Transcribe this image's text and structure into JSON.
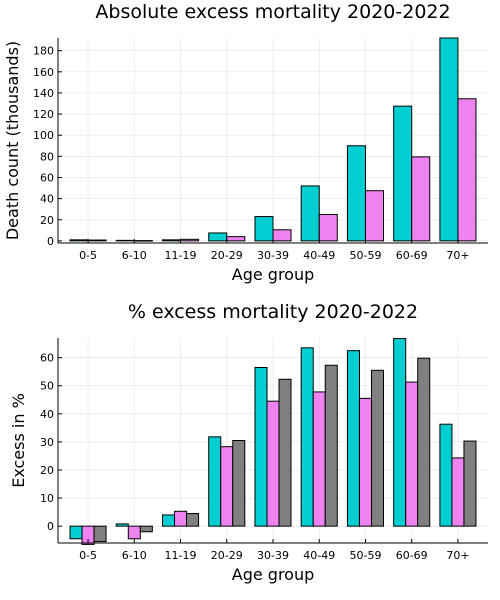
{
  "chart_data": [
    {
      "type": "bar",
      "title": "Absolute excess mortality 2020-2022",
      "xlabel": "Age group",
      "ylabel": "Death count (thousands)",
      "categories": [
        "0-5",
        "6-10",
        "11-19",
        "20-29",
        "30-39",
        "40-49",
        "50-59",
        "60-69",
        "70+"
      ],
      "ylim": [
        -2,
        192
      ],
      "yticks": [
        0,
        20,
        40,
        60,
        80,
        100,
        120,
        140,
        160,
        180
      ],
      "grid": true,
      "colors": [
        "#00CED1",
        "#EE82EE"
      ],
      "series": [
        {
          "values": [
            1.0,
            0.5,
            1.0,
            7.5,
            23.0,
            52.0,
            90.0,
            127.5,
            192.0
          ]
        },
        {
          "values": [
            0.8,
            0.3,
            1.5,
            4.0,
            10.5,
            25.0,
            47.5,
            79.5,
            134.5
          ]
        }
      ]
    },
    {
      "type": "bar",
      "title": "% excess mortality 2020-2022",
      "xlabel": "Age group",
      "ylabel": "Excess in %",
      "categories": [
        "0-5",
        "6-10",
        "11-19",
        "20-29",
        "30-39",
        "40-49",
        "50-59",
        "60-69",
        "70+"
      ],
      "ylim": [
        -6,
        67
      ],
      "yticks": [
        0,
        10,
        20,
        30,
        40,
        50,
        60
      ],
      "grid": true,
      "colors": [
        "#00CED1",
        "#EE82EE",
        "#808080"
      ],
      "series": [
        {
          "values": [
            -4.5,
            0.8,
            4.0,
            31.8,
            56.5,
            63.5,
            62.5,
            66.8,
            36.3
          ]
        },
        {
          "values": [
            -6.5,
            -4.5,
            5.3,
            28.3,
            44.5,
            47.8,
            45.5,
            51.3,
            24.3
          ]
        },
        {
          "values": [
            -5.5,
            -2.0,
            4.5,
            30.5,
            52.3,
            57.3,
            55.5,
            59.8,
            30.3
          ]
        }
      ]
    }
  ]
}
